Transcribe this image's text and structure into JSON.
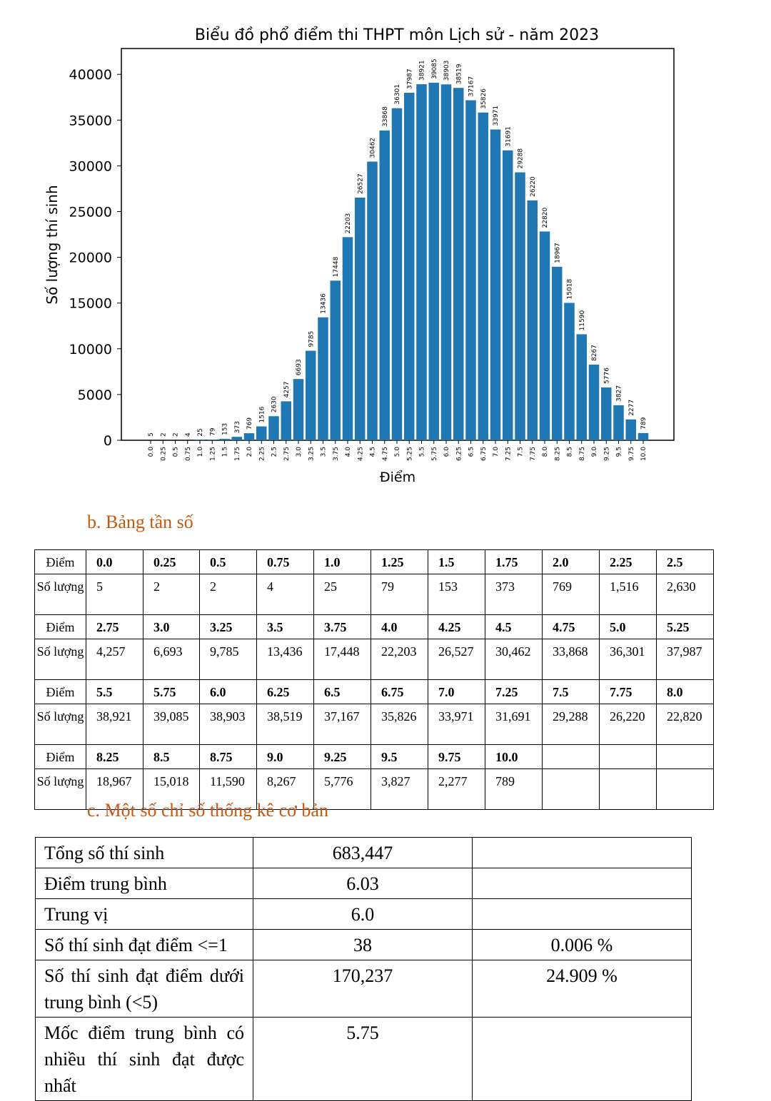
{
  "chart_data": {
    "type": "bar",
    "title": "Biểu đồ phổ điểm thi THPT môn Lịch sử - năm 2023",
    "xlabel": "Điểm",
    "ylabel": "Số lượng thí sinh",
    "ylim": [
      0,
      42000
    ],
    "yticks": [
      0,
      5000,
      10000,
      15000,
      20000,
      25000,
      30000,
      35000,
      40000
    ],
    "ytick_labels": [
      "0",
      "5000",
      "10000",
      "15000",
      "20000",
      "25000",
      "30000",
      "35000",
      "40000"
    ],
    "categories": [
      "0.0",
      "0.25",
      "0.5",
      "0.75",
      "1.0",
      "1.25",
      "1.5",
      "1.75",
      "2.0",
      "2.25",
      "2.5",
      "2.75",
      "3.0",
      "3.25",
      "3.5",
      "3.75",
      "4.0",
      "4.25",
      "4.5",
      "4.75",
      "5.0",
      "5.25",
      "5.5",
      "5.75",
      "6.0",
      "6.25",
      "6.5",
      "6.75",
      "7.0",
      "7.25",
      "7.5",
      "7.75",
      "8.0",
      "8.25",
      "8.5",
      "8.75",
      "9.0",
      "9.25",
      "9.5",
      "9.75",
      "10.0"
    ],
    "values": [
      5,
      2,
      2,
      4,
      25,
      79,
      153,
      373,
      769,
      1516,
      2630,
      4257,
      6693,
      9785,
      13436,
      17448,
      22203,
      26527,
      30462,
      33868,
      36301,
      37987,
      38921,
      39085,
      38903,
      38519,
      37167,
      35826,
      33971,
      31691,
      29288,
      26220,
      22820,
      18967,
      15018,
      11590,
      8267,
      5776,
      3827,
      2277,
      789
    ],
    "bar_color": "#1f77b4"
  },
  "freq_section": {
    "title": "b. Bảng tần số",
    "score_label": "Điểm",
    "count_label": "Số lượng",
    "rows": [
      {
        "scores": [
          "0.0",
          "0.25",
          "0.5",
          "0.75",
          "1.0",
          "1.25",
          "1.5",
          "1.75",
          "2.0",
          "2.25",
          "2.5"
        ],
        "counts": [
          "5",
          "2",
          "2",
          "4",
          "25",
          "79",
          "153",
          "373",
          "769",
          "1,516",
          "2,630"
        ]
      },
      {
        "scores": [
          "2.75",
          "3.0",
          "3.25",
          "3.5",
          "3.75",
          "4.0",
          "4.25",
          "4.5",
          "4.75",
          "5.0",
          "5.25"
        ],
        "counts": [
          "4,257",
          "6,693",
          "9,785",
          "13,436",
          "17,448",
          "22,203",
          "26,527",
          "30,462",
          "33,868",
          "36,301",
          "37,987"
        ]
      },
      {
        "scores": [
          "5.5",
          "5.75",
          "6.0",
          "6.25",
          "6.5",
          "6.75",
          "7.0",
          "7.25",
          "7.5",
          "7.75",
          "8.0"
        ],
        "counts": [
          "38,921",
          "39,085",
          "38,903",
          "38,519",
          "37,167",
          "35,826",
          "33,971",
          "31,691",
          "29,288",
          "26,220",
          "22,820"
        ]
      },
      {
        "scores": [
          "8.25",
          "8.5",
          "8.75",
          "9.0",
          "9.25",
          "9.5",
          "9.75",
          "10.0",
          "",
          "",
          ""
        ],
        "counts": [
          "18,967",
          "15,018",
          "11,590",
          "8,267",
          "5,776",
          "3,827",
          "2,277",
          "789",
          "",
          "",
          ""
        ]
      }
    ]
  },
  "stats_section": {
    "title": "c. Một số chỉ số thống kê cơ bản",
    "rows": [
      {
        "label": "Tổng số thí sinh",
        "value": "683,447",
        "percent": ""
      },
      {
        "label": "Điểm trung bình",
        "value": "6.03",
        "percent": ""
      },
      {
        "label": "Trung vị",
        "value": "6.0",
        "percent": ""
      },
      {
        "label": "Số thí sinh đạt điểm <=1",
        "value": "38",
        "percent": "0.006 %"
      },
      {
        "label": "Số thí sinh đạt điểm dưới trung bình (<5)",
        "value": "170,237",
        "percent": "24.909 %"
      },
      {
        "label": "Mốc điểm trung bình có nhiều thí sinh đạt được nhất",
        "value": "5.75",
        "percent": ""
      }
    ]
  }
}
